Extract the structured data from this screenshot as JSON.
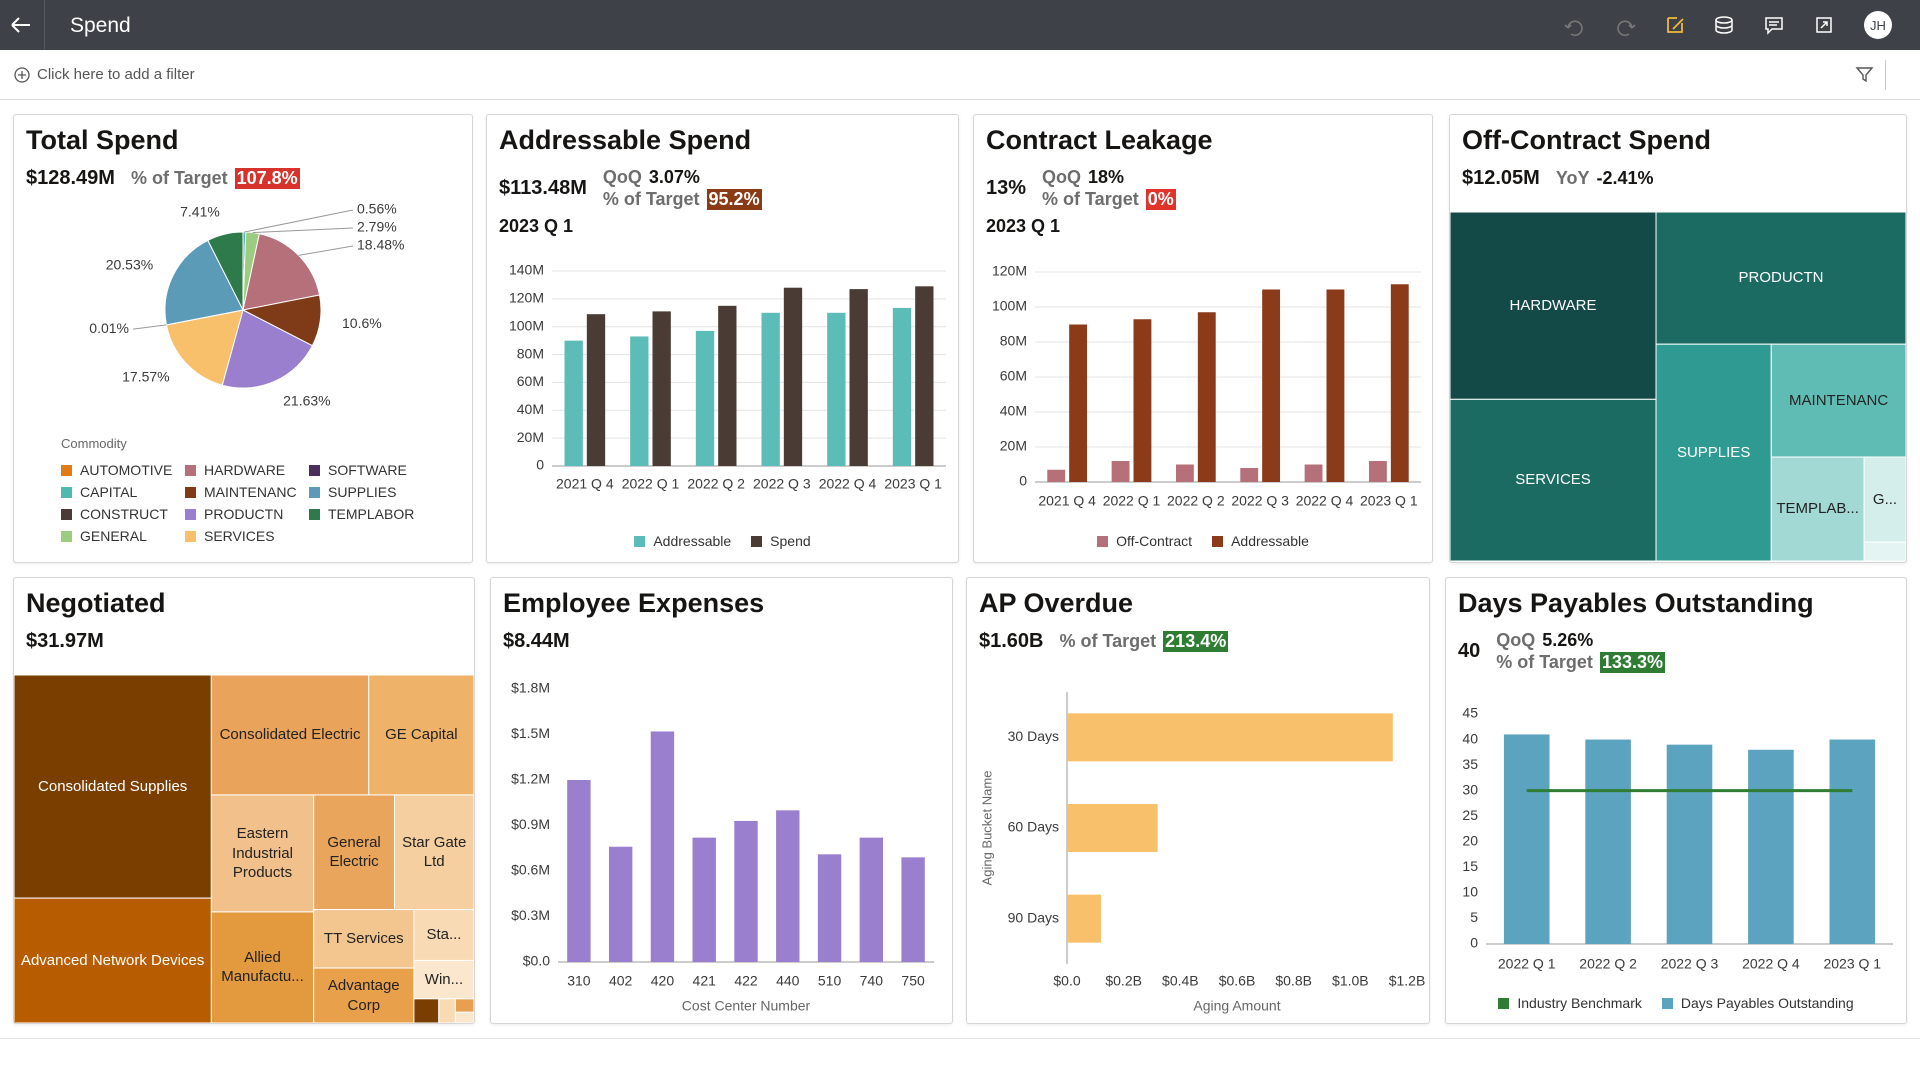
{
  "header": {
    "title": "Spend",
    "avatar": "JH"
  },
  "filter_bar": {
    "prompt": "Click here to add a filter"
  },
  "tiles": [
    {
      "title": "Total Spend",
      "kpi": {
        "main": "$128.49M",
        "details": [
          {
            "label": "% of Target",
            "value": "107.8%",
            "badge": "#d7322b"
          }
        ]
      },
      "chart": {
        "type": "pie",
        "values": [
          0.56,
          2.79,
          18.48,
          10.6,
          21.63,
          17.57,
          0.01,
          20.53,
          7.41
        ],
        "value_labels": [
          "0.56%",
          "2.79%",
          "18.48%",
          "10.6%",
          "21.63%",
          "17.57%",
          "0.01%",
          "20.53%",
          "7.41%"
        ],
        "colors": [
          "#4fb8b0",
          "#9ccc7f",
          "#b5707a",
          "#7f3a17",
          "#9b7fcf",
          "#f8c06a",
          "#4b2d5e",
          "#5b9bb8",
          "#2f7a4a"
        ],
        "legend": {
          "title": "Commodity",
          "items": [
            {
              "name": "AUTOMOTIVE",
              "color": "#e07b1a"
            },
            {
              "name": "HARDWARE",
              "color": "#b5707a"
            },
            {
              "name": "SOFTWARE",
              "color": "#4b2d5e"
            },
            {
              "name": "CAPITAL",
              "color": "#4fb8b0"
            },
            {
              "name": "MAINTENANC",
              "color": "#7f3a17"
            },
            {
              "name": "SUPPLIES",
              "color": "#5b9bb8"
            },
            {
              "name": "CONSTRUCT",
              "color": "#4a3c34"
            },
            {
              "name": "PRODUCTN",
              "color": "#9b7fcf"
            },
            {
              "name": "TEMPLABOR",
              "color": "#2f7a4a"
            },
            {
              "name": "GENERAL",
              "color": "#9ccc7f"
            },
            {
              "name": "SERVICES",
              "color": "#f8c06a"
            }
          ]
        }
      }
    },
    {
      "title": "Addressable Spend",
      "kpi": {
        "main": "$113.48M",
        "details": [
          {
            "label": "QoQ",
            "value": "3.07%"
          },
          {
            "label": "% of Target",
            "value": "95.2%",
            "badge": "#8b3a16"
          }
        ],
        "period": "2023 Q 1"
      },
      "chart": {
        "type": "bar",
        "grid": true,
        "categories": [
          "2021 Q 4",
          "2022 Q 1",
          "2022 Q 2",
          "2022 Q 3",
          "2022 Q 4",
          "2023 Q 1"
        ],
        "series": [
          {
            "name": "Addressable",
            "color": "#5bbcb8",
            "values": [
              90,
              93,
              97,
              110,
              110,
              113.48
            ]
          },
          {
            "name": "Spend",
            "color": "#4a3c34",
            "values": [
              109,
              111,
              115,
              128,
              127,
              129
            ]
          }
        ],
        "ylim": [
          0,
          140
        ],
        "yticks": [
          0,
          {
            "value": 20,
            "label": "20M"
          },
          {
            "value": 40,
            "label": "40M"
          },
          {
            "value": 60,
            "label": "60M"
          },
          {
            "value": 80,
            "label": "80M"
          },
          {
            "value": 100,
            "label": "100M"
          },
          {
            "value": 120,
            "label": "120M"
          },
          {
            "value": 140,
            "label": "140M"
          }
        ]
      }
    },
    {
      "title": "Contract Leakage",
      "kpi": {
        "main": "13%",
        "details": [
          {
            "label": "QoQ",
            "value": "18%"
          },
          {
            "label": "% of Target",
            "value": "0%",
            "badge": "#e0342a"
          }
        ],
        "period": "2023 Q 1"
      },
      "chart": {
        "type": "bar",
        "grid": true,
        "categories": [
          "2021 Q 4",
          "2022 Q 1",
          "2022 Q 2",
          "2022 Q 3",
          "2022 Q 4",
          "2023 Q 1"
        ],
        "series": [
          {
            "name": "Off-Contract",
            "color": "#b5707a",
            "values": [
              7,
              12,
              10,
              8,
              10,
              12
            ]
          },
          {
            "name": "Addressable",
            "color": "#8b3a1a",
            "values": [
              90,
              93,
              97,
              110,
              110,
              113
            ]
          }
        ],
        "ylim": [
          0,
          120
        ],
        "yticks": [
          0,
          {
            "value": 20,
            "label": "20M"
          },
          {
            "value": 40,
            "label": "40M"
          },
          {
            "value": 60,
            "label": "60M"
          },
          {
            "value": 80,
            "label": "80M"
          },
          {
            "value": 100,
            "label": "100M"
          },
          {
            "value": 120,
            "label": "120M"
          }
        ]
      }
    },
    {
      "title": "Off-Contract Spend",
      "kpi": {
        "main": "$12.05M",
        "details": [
          {
            "label": "YoY",
            "value": "-2.41%"
          }
        ]
      },
      "chart": {
        "type": "treemap",
        "items": [
          {
            "label": "HARDWARE",
            "value": 2.92,
            "color": "#134a47"
          },
          {
            "label": "SERVICES",
            "value": 2.52,
            "color": "#1b6b63"
          },
          {
            "label": "PRODUCTN",
            "value": 2.5,
            "color": "#1b6b63"
          },
          {
            "label": "SUPPLIES",
            "value": 1.89,
            "color": "#2e9a92"
          },
          {
            "label": "MAINTENANC",
            "value": 1.15,
            "color": "#5fbcb4"
          },
          {
            "label": "TEMPLAB...",
            "value": 0.73,
            "color": "#a3d9d4"
          },
          {
            "label": "G...",
            "value": 0.27,
            "color": "#d4eeec"
          },
          {
            "label": null,
            "value": 0.06,
            "color": "#e3f4f2"
          }
        ]
      }
    },
    {
      "title": "Negotiated",
      "kpi": {
        "main": "$31.97M"
      },
      "chart": {
        "type": "treemap",
        "items": [
          {
            "label": "Consolidated Supplies",
            "value": 8.79,
            "color": "#7a3f00"
          },
          {
            "label": "Advanced Network Devices",
            "value": 4.92,
            "color": "#b85c00"
          },
          {
            "label": "Consolidated Electric",
            "value": 3.77,
            "color": "#e9a35a"
          },
          {
            "label": "GE Capital",
            "value": 2.52,
            "color": "#efb269"
          },
          {
            "label": "Eastern Industrial Products",
            "value": 2.39,
            "color": "#f2c08a"
          },
          {
            "label": "Allied Manufactu...",
            "value": 2.27,
            "color": "#e39a3f"
          },
          {
            "label": "General Electric",
            "value": 1.85,
            "color": "#e9a55c"
          },
          {
            "label": "Star Gate Ltd",
            "value": 1.82,
            "color": "#f5cfa0"
          },
          {
            "label": "TT Services",
            "value": 1.17,
            "color": "#f3c58f"
          },
          {
            "label": "Advantage Corp",
            "value": 1.1,
            "color": "#e9a04a"
          },
          {
            "label": "Sta...",
            "value": 0.61,
            "color": "#f8dbb5"
          },
          {
            "label": "Win...",
            "value": 0.46,
            "color": "#fbe7cd"
          },
          {
            "label": null,
            "value": 0.12,
            "color": "#7a3f00"
          },
          {
            "label": null,
            "value": 0.08,
            "color": "#f8dbb5"
          },
          {
            "label": null,
            "value": 0.05,
            "color": "#e8a050"
          },
          {
            "label": null,
            "value": 0.04,
            "color": "#fbe7cd"
          }
        ]
      }
    },
    {
      "title": "Employee Expenses",
      "kpi": {
        "main": "$8.44M"
      },
      "chart": {
        "type": "bar",
        "grid": false,
        "x_label": "Cost Center Number",
        "categories": [
          "310",
          "402",
          "420",
          "421",
          "422",
          "440",
          "510",
          "740",
          "750"
        ],
        "series": [
          {
            "color": "#9b7fcf",
            "values": [
              1.2,
              0.76,
              1.52,
              0.82,
              0.93,
              1.0,
              0.71,
              0.82,
              0.69
            ]
          }
        ],
        "ylim": [
          0,
          1.8
        ],
        "yticks": [
          {
            "value": 0,
            "label": "$0.0"
          },
          {
            "value": 0.3,
            "label": "$0.3M"
          },
          {
            "value": 0.6,
            "label": "$0.6M"
          },
          {
            "value": 0.9,
            "label": "$0.9M"
          },
          {
            "value": 1.2,
            "label": "$1.2M"
          },
          {
            "value": 1.5,
            "label": "$1.5M"
          },
          {
            "value": 1.8,
            "label": "$1.8M"
          }
        ]
      }
    },
    {
      "title": "AP Overdue",
      "kpi": {
        "main": "$1.60B",
        "details": [
          {
            "label": "% of Target",
            "value": "213.4%",
            "badge": "#2e7d32"
          }
        ]
      },
      "chart": {
        "type": "hbar",
        "x_label": "Aging Amount",
        "y_label": "Aging Bucket Name",
        "color": "#f8c06a",
        "categories": [
          "30 Days",
          "60 Days",
          "90 Days"
        ],
        "values": [
          1.15,
          0.32,
          0.12
        ],
        "xlim": [
          0,
          1.2
        ],
        "xticks": [
          {
            "value": 0,
            "label": "$0.0"
          },
          {
            "value": 0.2,
            "label": "$0.2B"
          },
          {
            "value": 0.4,
            "label": "$0.4B"
          },
          {
            "value": 0.6,
            "label": "$0.6B"
          },
          {
            "value": 0.8,
            "label": "$0.8B"
          },
          {
            "value": 1.0,
            "label": "$1.0B"
          },
          {
            "value": 1.2,
            "label": "$1.2B"
          }
        ]
      }
    },
    {
      "title": "Days Payables Outstanding",
      "kpi": {
        "main": "40",
        "details": [
          {
            "label": "QoQ",
            "value": "5.26%"
          },
          {
            "label": "% of Target",
            "value": "133.3%",
            "badge": "#2e7d32"
          }
        ]
      },
      "chart": {
        "type": "bar",
        "grid": false,
        "categories": [
          "2022 Q 1",
          "2022 Q 2",
          "2022 Q 3",
          "2022 Q 4",
          "2023 Q 1"
        ],
        "series": [
          {
            "name": "Industry Benchmark",
            "color": "#2e7d32",
            "kind": "line",
            "values": [
              30,
              30,
              30,
              30,
              30
            ]
          },
          {
            "name": "Days Payables Outstanding",
            "color": "#5ba3bf",
            "values": [
              41,
              40,
              39,
              38,
              40
            ]
          }
        ],
        "ylim": [
          0,
          45
        ],
        "yticks": [
          0,
          5,
          10,
          15,
          20,
          25,
          30,
          35,
          40,
          45
        ]
      }
    }
  ]
}
